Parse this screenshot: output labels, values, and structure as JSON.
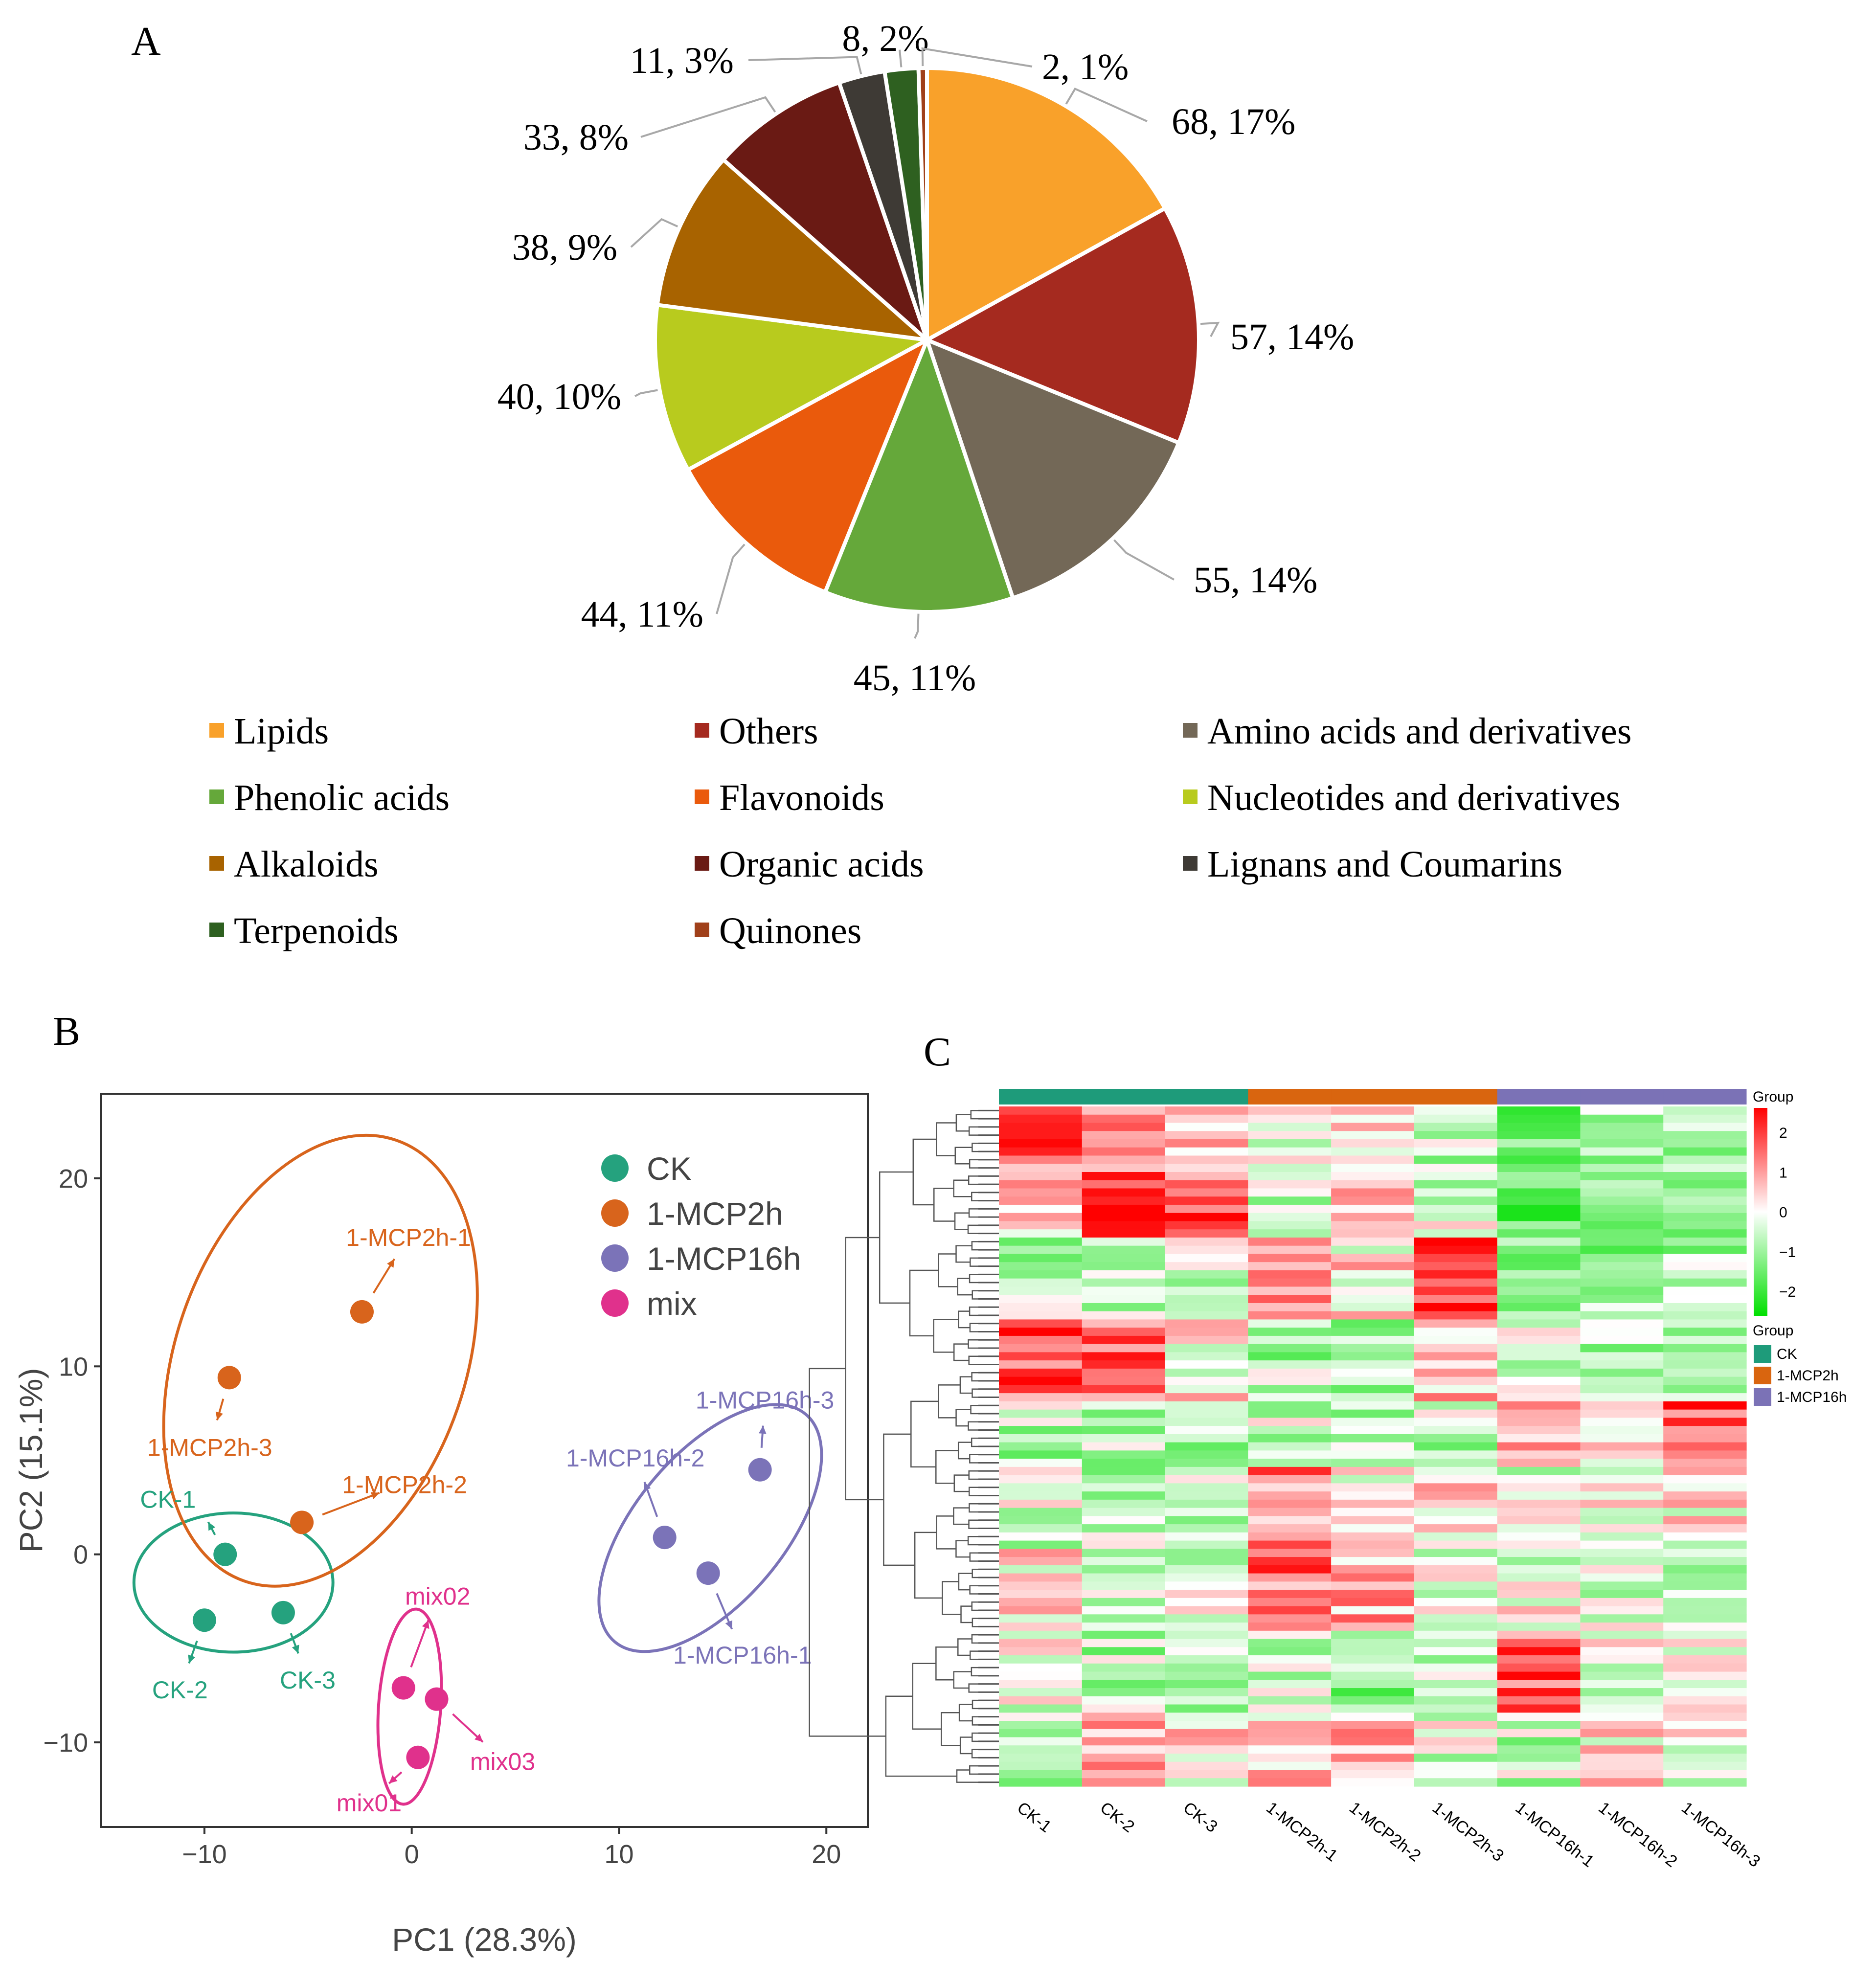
{
  "chart_data": [
    {
      "panel": "A",
      "type": "pie",
      "panel_label": "A",
      "slices": [
        {
          "name": "Lipids",
          "value": 68,
          "label": "68, 17%",
          "color": "#F9A12A"
        },
        {
          "name": "Others",
          "value": 57,
          "label": "57, 14%",
          "color": "#A52A1F"
        },
        {
          "name": "Amino acids and derivatives",
          "value": 55,
          "label": "55, 14%",
          "color": "#736857"
        },
        {
          "name": "Phenolic acids",
          "value": 45,
          "label": "45, 11%",
          "color": "#65A83A"
        },
        {
          "name": "Flavonoids",
          "value": 44,
          "label": "44, 11%",
          "color": "#EA5A0C"
        },
        {
          "name": "Nucleotides and derivatives",
          "value": 40,
          "label": "40, 10%",
          "color": "#B8CB1E"
        },
        {
          "name": "Alkaloids",
          "value": 38,
          "label": "38, 9%",
          "color": "#A86300"
        },
        {
          "name": "Organic acids",
          "value": 33,
          "label": "33, 8%",
          "color": "#6A1A14"
        },
        {
          "name": "Lignans and Coumarins",
          "value": 11,
          "label": "11, 3%",
          "color": "#3E3A35"
        },
        {
          "name": "Terpenoids",
          "value": 8,
          "label": "8, 2%",
          "color": "#2E6020"
        },
        {
          "name": "Quinones",
          "value": 2,
          "label": "2, 1%",
          "color": "#A0401A"
        }
      ],
      "legend_position": "bottom"
    },
    {
      "panel": "B",
      "type": "scatter",
      "panel_label": "B",
      "xlabel": "PC1 (28.3%)",
      "ylabel": "PC2 (15.1%)",
      "xlim": [
        -15,
        22
      ],
      "ylim": [
        -14.5,
        24.5
      ],
      "xticks": [
        -10,
        0,
        10,
        20
      ],
      "xtick_labels": [
        "−10",
        "0",
        "10",
        "20"
      ],
      "yticks": [
        -10,
        0,
        10,
        20
      ],
      "ytick_labels": [
        "−10",
        "0",
        "10",
        "20"
      ],
      "legend_position": "top-right",
      "groups": [
        {
          "name": "CK",
          "color": "#25A27E",
          "points": [
            {
              "label": "CK-1",
              "x": -9.0,
              "y": 0.0
            },
            {
              "label": "CK-2",
              "x": -10.0,
              "y": -3.5
            },
            {
              "label": "CK-3",
              "x": -6.2,
              "y": -3.1
            }
          ],
          "ellipse": {
            "cx": -8.6,
            "cy": -1.5,
            "rx": 4.8,
            "ry": 3.7,
            "angle": 0
          }
        },
        {
          "name": "1-MCP2h",
          "color": "#D8641C",
          "points": [
            {
              "label": "1-MCP2h-1",
              "x": -2.4,
              "y": 12.9
            },
            {
              "label": "1-MCP2h-2",
              "x": -5.3,
              "y": 1.7
            },
            {
              "label": "1-MCP2h-3",
              "x": -8.8,
              "y": 9.4
            }
          ],
          "ellipse": {
            "cx": -4.4,
            "cy": 10.3,
            "rx": 7.0,
            "ry": 12.4,
            "angle": 19
          }
        },
        {
          "name": "1-MCP16h",
          "color": "#7B73B8",
          "points": [
            {
              "label": "1-MCP16h-1",
              "x": 14.3,
              "y": -1.0
            },
            {
              "label": "1-MCP16h-2",
              "x": 12.2,
              "y": 0.9
            },
            {
              "label": "1-MCP16h-3",
              "x": 16.8,
              "y": 4.5
            }
          ],
          "ellipse": {
            "cx": 14.4,
            "cy": 1.4,
            "rx": 3.6,
            "ry": 7.9,
            "angle": 40
          }
        },
        {
          "name": "mix",
          "color": "#E0318C",
          "points": [
            {
              "label": "mix01",
              "x": 0.3,
              "y": -10.8
            },
            {
              "label": "mix02",
              "x": -0.4,
              "y": -7.1
            },
            {
              "label": "mix03",
              "x": 1.2,
              "y": -7.7
            }
          ],
          "ellipse": {
            "cx": -0.1,
            "cy": -8.1,
            "rx": 1.5,
            "ry": 5.2,
            "angle": 4
          }
        }
      ]
    },
    {
      "panel": "C",
      "type": "heatmap",
      "panel_label": "C",
      "columns": [
        "CK-1",
        "CK-2",
        "CK-3",
        "1-MCP2h-1",
        "1-MCP2h-2",
        "1-MCP2h-3",
        "1-MCP16h-1",
        "1-MCP16h-2",
        "1-MCP16h-3"
      ],
      "column_groups": [
        "CK",
        "CK",
        "CK",
        "1-MCP2h",
        "1-MCP2h",
        "1-MCP2h",
        "1-MCP16h",
        "1-MCP16h",
        "1-MCP16h"
      ],
      "group_annotation_title": "Group",
      "group_legend_title": "Group",
      "group_colors": {
        "CK": "#1E9B7A",
        "1-MCP2h": "#D9650F",
        "1-MCP16h": "#7B72B6"
      },
      "color_scale": {
        "min": -2,
        "max": 2,
        "low": "#00E000",
        "mid": "#FFFFFF",
        "high": "#FF0000",
        "ticks": [
          2,
          1,
          0,
          -1,
          -2
        ],
        "tick_labels": [
          "2",
          "1",
          "0",
          "−1",
          "−2"
        ]
      },
      "row_clusters": [
        {
          "rows": 8,
          "values": [
            1.2,
            0.8,
            0.6,
            -0.3,
            0.4,
            -0.4,
            -1.1,
            -0.6,
            -0.8
          ]
        },
        {
          "rows": 8,
          "values": [
            0.3,
            1.6,
            1.3,
            -0.4,
            0.2,
            -0.2,
            -1.0,
            -0.7,
            -1.0
          ]
        },
        {
          "rows": 10,
          "values": [
            -0.6,
            -0.3,
            -0.4,
            0.7,
            0.2,
            1.7,
            -0.9,
            -0.8,
            -0.7
          ]
        },
        {
          "rows": 10,
          "values": [
            1.3,
            1.2,
            0.1,
            -0.6,
            -0.5,
            0.4,
            -0.3,
            -0.5,
            -0.7
          ]
        },
        {
          "rows": 8,
          "values": [
            -0.5,
            -0.4,
            -0.6,
            -0.4,
            -0.6,
            -0.5,
            0.8,
            0.4,
            1.4
          ]
        },
        {
          "rows": 10,
          "values": [
            -0.3,
            -0.5,
            -0.5,
            1.0,
            0.1,
            0.3,
            -0.2,
            -0.1,
            0.1
          ]
        },
        {
          "rows": 10,
          "values": [
            0.2,
            -0.3,
            -0.1,
            1.1,
            0.7,
            -0.2,
            -0.1,
            -0.3,
            -0.3
          ]
        },
        {
          "rows": 10,
          "values": [
            -0.2,
            -0.5,
            -0.7,
            -0.4,
            -0.8,
            -0.5,
            1.3,
            -0.2,
            -0.3
          ]
        },
        {
          "rows": 9,
          "values": [
            -0.5,
            0.9,
            0.2,
            0.4,
            0.7,
            -0.2,
            -0.4,
            0.3,
            0.0
          ]
        }
      ]
    }
  ]
}
